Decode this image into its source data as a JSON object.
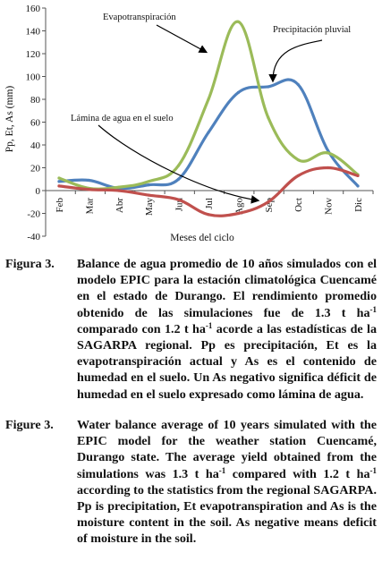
{
  "chart_data": {
    "type": "line",
    "title": "",
    "xlabel": "Meses del ciclo",
    "ylabel": "Pp, Et, As (mm)",
    "ylim": [
      -40,
      160
    ],
    "yticks": [
      -40,
      -20,
      0,
      20,
      40,
      60,
      80,
      100,
      120,
      140,
      160
    ],
    "categories": [
      "Feb",
      "Mar",
      "Abr",
      "May",
      "Jun",
      "Jul",
      "Ago",
      "Sep",
      "Oct",
      "Nov",
      "Dic"
    ],
    "grid": false,
    "legend": "none (series labeled by annotations)",
    "series": [
      {
        "name": "Precipitación pluvial",
        "color": "#4f81bd",
        "values": [
          8,
          9,
          2,
          5,
          10,
          51,
          86,
          91,
          93,
          35,
          4
        ]
      },
      {
        "name": "Evapotranspiración",
        "color": "#9bbb59",
        "values": [
          11,
          2,
          3,
          8,
          22,
          80,
          148,
          64,
          27,
          33,
          14
        ]
      },
      {
        "name": "Lámina de agua en el suelo",
        "color": "#c0504d",
        "values": [
          4,
          1,
          0,
          -4,
          -8,
          -21,
          -20,
          -10,
          13,
          20,
          13
        ]
      }
    ],
    "annotations": [
      {
        "text": "Evapotranspiración",
        "points_to": "Evapotranspiración series"
      },
      {
        "text": "Precipitación pluvial",
        "points_to": "Precipitación pluvial series"
      },
      {
        "text": "Lámina de agua en el suelo",
        "points_to": "Lámina de agua en el suelo series"
      }
    ]
  },
  "captions": {
    "es": {
      "label": "Figura 3.",
      "p1": "Balance de agua promedio de 10 años simulados con el modelo EPIC para la estación climatológica Cuencamé en el estado de Durango. El rendimiento promedio obtenido de las simulaciones fue de 1.3 t ha",
      "sup1": "-1",
      "p2": " comparado con 1.2 t ha",
      "sup2": "-1",
      "p3": " acorde a las estadísticas de la SAGARPA regional. Pp es precipitación, Et es la evapotranspiración actual y As es el contenido de humedad en el suelo. Un As negativo significa déficit de humedad en el suelo expresado como lámina de agua."
    },
    "en": {
      "label": "Figure 3.",
      "p1": "Water balance average of 10 years simulated with the EPIC model for the weather station Cuencamé, Durango state. The average yield obtained from the simulations was 1.3 t ha",
      "sup1": "-1",
      "p2": " compared with 1.2 t ha",
      "sup2": "-1",
      "p3": " according to the statistics from the regional SAGARPA. Pp is precipitation, Et evapotranspiration and As is the moisture content in the soil. As negative means deficit of moisture in the soil."
    }
  }
}
